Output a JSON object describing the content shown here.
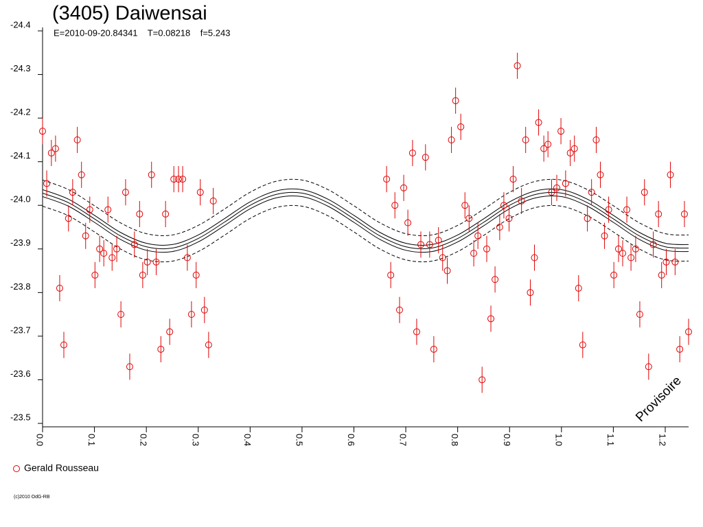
{
  "chart_data": {
    "type": "scatter",
    "title": "(3405) Daiwensai",
    "subtitle": "E=2010-09-20.84341    T=0.08218    f=5.243",
    "annotation": "Provisoire",
    "footer": "(c)2010 OdG-RB",
    "xlim": [
      0,
      1.245
    ],
    "ylim": [
      -24.4,
      -23.5
    ],
    "xticks": [
      {
        "value": 0,
        "label": "0.0"
      },
      0.1,
      0.2,
      0.3,
      0.4,
      0.5,
      0.6,
      0.7,
      0.8,
      0.9,
      {
        "value": 1,
        "label": "1.0"
      },
      1.1,
      1.2
    ],
    "yticks": [
      -24.4,
      -24.3,
      -24.2,
      -24.1,
      {
        "value": -24,
        "label": "-24.0"
      },
      -23.9,
      -23.8,
      -23.7,
      -23.6,
      -23.5
    ],
    "series": [
      {
        "name": "Gerald Rousseau",
        "color": "#e00000",
        "error": 0.03,
        "x": [
          0.0,
          0.008,
          0.017,
          0.025,
          0.033,
          0.041,
          0.05,
          0.058,
          0.067,
          0.075,
          0.083,
          0.091,
          0.101,
          0.11,
          0.118,
          0.126,
          0.134,
          0.143,
          0.151,
          0.16,
          0.168,
          0.177,
          0.187,
          0.193,
          0.202,
          0.21,
          0.219,
          0.228,
          0.237,
          0.245,
          0.253,
          0.262,
          0.27,
          0.279,
          0.287,
          0.296,
          0.304,
          0.312,
          0.32,
          0.329,
          0.663,
          0.671,
          0.679,
          0.688,
          0.696,
          0.704,
          0.713,
          0.721,
          0.729,
          0.738,
          0.746,
          0.754,
          0.763,
          0.771,
          0.78,
          0.788,
          0.796,
          0.806,
          0.814,
          0.822,
          0.831,
          0.839,
          0.847,
          0.856,
          0.864,
          0.872,
          0.881,
          0.889,
          0.899,
          0.907,
          0.915,
          0.923,
          0.931,
          0.94,
          0.948,
          0.956,
          0.966,
          0.974,
          0.981,
          0.991,
          0.999,
          1.008,
          1.017,
          1.025,
          1.033,
          1.041,
          1.05,
          1.058,
          1.067,
          1.075,
          1.083,
          1.091,
          1.101,
          1.11,
          1.118,
          1.126,
          1.134,
          1.143,
          1.151,
          1.16,
          1.168,
          1.177,
          1.187,
          1.193,
          1.202,
          1.21,
          1.219,
          1.228,
          1.237,
          1.245
        ],
        "values": [
          -24.17,
          -24.05,
          -24.12,
          -24.13,
          -23.81,
          -23.68,
          -23.97,
          -24.03,
          -24.15,
          -24.07,
          -23.93,
          -23.99,
          -23.84,
          -23.9,
          -23.89,
          -23.99,
          -23.88,
          -23.9,
          -23.75,
          -24.03,
          -23.63,
          -23.91,
          -23.98,
          -23.84,
          -23.87,
          -24.07,
          -23.87,
          -23.67,
          -23.98,
          -23.71,
          -24.06,
          -24.06,
          -24.06,
          -23.88,
          -23.75,
          -23.84,
          -24.03,
          -23.76,
          -23.68,
          -24.01,
          -24.06,
          -23.84,
          -24.0,
          -23.76,
          -24.04,
          -23.96,
          -24.12,
          -23.71,
          -23.91,
          -24.11,
          -23.91,
          -23.67,
          -23.92,
          -23.88,
          -23.85,
          -24.15,
          -24.24,
          -24.18,
          -24.0,
          -23.97,
          -23.89,
          -23.93,
          -23.6,
          -23.9,
          -23.74,
          -23.83,
          -23.95,
          -24.0,
          -23.97,
          -24.06,
          -24.32,
          -24.01,
          -24.15,
          -23.8,
          -23.88,
          -24.19,
          -24.13,
          -24.14,
          -24.03,
          -24.04,
          -24.17,
          -24.05,
          -24.12,
          -24.13,
          -23.81,
          -23.68,
          -23.97,
          -24.03,
          -24.15,
          -24.07,
          -23.93,
          -23.99,
          -23.84,
          -23.9,
          -23.89,
          -23.99,
          -23.88,
          -23.9,
          -23.75,
          -24.03,
          -23.63,
          -23.91,
          -23.98,
          -23.84,
          -23.87,
          -24.07,
          -23.87,
          -23.67,
          -23.98,
          -23.71
        ]
      }
    ],
    "fit_x": [
      0,
      0.05,
      0.1,
      0.15,
      0.2,
      0.25,
      0.3,
      0.35,
      0.4,
      0.45,
      0.5,
      0.55,
      0.6,
      0.65,
      0.7,
      0.75,
      0.8,
      0.85,
      0.9,
      0.95,
      1,
      1.05,
      1.1,
      1.15,
      1.2,
      1.25
    ],
    "fits": [
      {
        "color": "#000000",
        "dashed": true,
        "values": [
          -24.058,
          -24.036,
          -23.999,
          -23.96,
          -23.935,
          -23.932,
          -23.954,
          -23.991,
          -24.03,
          -24.055,
          -24.058,
          -24.036,
          -23.999,
          -23.96,
          -23.935,
          -23.932,
          -23.954,
          -23.991,
          -24.03,
          -24.055,
          -24.058,
          -24.036,
          -23.999,
          -23.96,
          -23.935,
          -23.932
        ]
      },
      {
        "color": "#000000",
        "dashed": false,
        "values": [
          -24.036,
          -24.014,
          -23.977,
          -23.938,
          -23.913,
          -23.91,
          -23.932,
          -23.969,
          -24.008,
          -24.033,
          -24.036,
          -24.014,
          -23.977,
          -23.938,
          -23.913,
          -23.91,
          -23.932,
          -23.969,
          -24.008,
          -24.033,
          -24.036,
          -24.014,
          -23.977,
          -23.938,
          -23.913,
          -23.91
        ]
      },
      {
        "color": "#000000",
        "dashed": false,
        "values": [
          -24.028,
          -24.006,
          -23.969,
          -23.93,
          -23.905,
          -23.902,
          -23.924,
          -23.961,
          -24.0,
          -24.025,
          -24.028,
          -24.006,
          -23.969,
          -23.93,
          -23.905,
          -23.902,
          -23.924,
          -23.961,
          -24.0,
          -24.025,
          -24.028,
          -24.006,
          -23.969,
          -23.93,
          -23.905,
          -23.902
        ]
      },
      {
        "color": "#000000",
        "dashed": false,
        "values": [
          -24.02,
          -23.998,
          -23.961,
          -23.922,
          -23.897,
          -23.894,
          -23.916,
          -23.953,
          -23.992,
          -24.017,
          -24.02,
          -23.998,
          -23.961,
          -23.922,
          -23.897,
          -23.894,
          -23.916,
          -23.953,
          -23.992,
          -24.017,
          -24.02,
          -23.998,
          -23.961,
          -23.922,
          -23.897,
          -23.894
        ]
      },
      {
        "color": "#000000",
        "dashed": true,
        "values": [
          -23.998,
          -23.976,
          -23.939,
          -23.9,
          -23.875,
          -23.872,
          -23.894,
          -23.931,
          -23.97,
          -23.995,
          -23.998,
          -23.976,
          -23.939,
          -23.9,
          -23.875,
          -23.872,
          -23.894,
          -23.931,
          -23.97,
          -23.995,
          -23.998,
          -23.976,
          -23.939,
          -23.9,
          -23.875,
          -23.872
        ]
      }
    ]
  }
}
